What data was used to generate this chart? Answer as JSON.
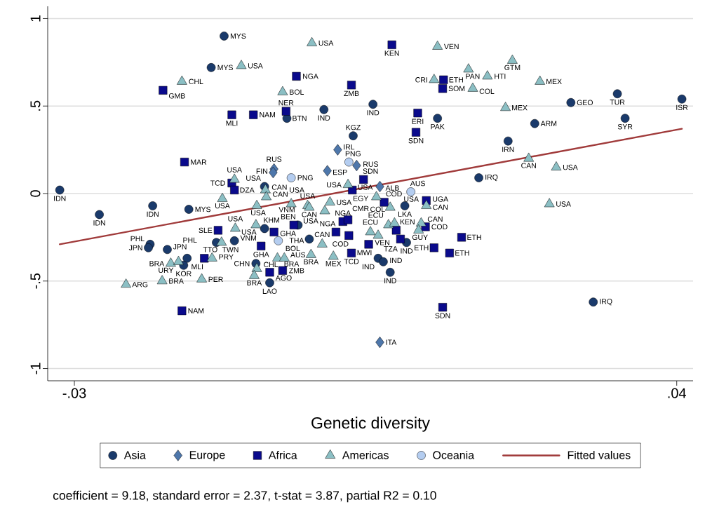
{
  "chart_data": {
    "type": "scatter",
    "xlabel": "Genetic diversity",
    "xlim": [
      -0.0331,
      0.0419
    ],
    "ylim": [
      -1.07,
      1.07
    ],
    "xticks": [
      {
        "value": -0.03,
        "label": "-.03"
      },
      {
        "value": 0.04,
        "label": ".04"
      }
    ],
    "yticks": [
      -1,
      {
        "value": -0.5,
        "label": "-.5"
      },
      0,
      {
        "value": 0.5,
        "label": ".5"
      },
      1
    ],
    "grid": "y",
    "legend": "bottom",
    "annotations": [
      "coefficient = 9.18, standard error = 2.37, t-stat = 3.87, partial R2 = 0.10"
    ],
    "series": [
      {
        "name": "Asia",
        "color": "#1a3a6b",
        "marker": "circle",
        "x": [
          -0.0126,
          -0.0141,
          0.0047,
          -0.001,
          -0.0053,
          0.0122,
          0.0024,
          0.0331,
          0.0277,
          0.0406,
          0.034,
          0.0235,
          0.0204,
          0.017,
          0.0303,
          -0.0317,
          -0.0209,
          -0.0271,
          -0.0167,
          -0.0079,
          -0.0212,
          -0.0214,
          -0.0192,
          -0.0169,
          -0.0173,
          -0.0135,
          -0.0114,
          -0.0079,
          -0.004,
          -0.0027,
          -0.0089,
          -0.0073,
          0.0084,
          0.0086,
          0.0053,
          0.0059,
          0.0067
        ],
        "values": [
          0.9,
          0.72,
          0.51,
          0.48,
          0.43,
          0.43,
          0.33,
          0.57,
          0.52,
          0.54,
          0.43,
          0.4,
          0.3,
          0.09,
          -0.62,
          0.02,
          -0.07,
          -0.12,
          -0.09,
          0.04,
          -0.29,
          -0.31,
          -0.32,
          -0.37,
          -0.41,
          -0.28,
          -0.27,
          -0.2,
          -0.18,
          -0.26,
          -0.4,
          -0.51,
          -0.07,
          -0.28,
          -0.37,
          -0.39,
          -0.45
        ],
        "value_labels": [
          "MYS",
          "MYS",
          "IND",
          "IND",
          "BTN",
          "PAK",
          "KGZ",
          "TUR",
          "GEO",
          "ISR",
          "SYR",
          "ARM",
          "IRN",
          "IRQ",
          "IRQ",
          "IDN",
          "IDN",
          "IDN",
          "MYS",
          "USA",
          "PHL",
          "JPN",
          "JPN",
          "PHL",
          "KOR",
          "TWN",
          "VNM",
          "KHM",
          "VNM",
          "THA",
          "CHN",
          "LAO",
          "LKA",
          "IND",
          "IND",
          "IND",
          "IND"
        ]
      },
      {
        "name": "Europe",
        "color": "#4e77ab",
        "marker": "diamond",
        "x": [
          -0.0068,
          -0.0069,
          0.0006,
          0.0028,
          -0.0006,
          0.0055,
          0.0055
        ],
        "values": [
          0.14,
          0.12,
          0.25,
          0.16,
          0.13,
          0.04,
          -0.85
        ],
        "value_labels": [
          "RUS",
          "FIN",
          "IRL",
          "RUS",
          "ESP",
          "ALB",
          "ITA"
        ]
      },
      {
        "name": "Africa",
        "color": "#0a0a8c",
        "marker": "square",
        "x": [
          -0.0197,
          -0.0117,
          -0.0092,
          -0.0042,
          -0.0054,
          0.0022,
          0.0069,
          0.0129,
          0.0128,
          0.0099,
          0.0097,
          -0.0172,
          -0.0117,
          -0.0114,
          0.0036,
          0.0023,
          0.006,
          0.0109,
          -0.0133,
          -0.0149,
          -0.0083,
          -0.0068,
          -0.0045,
          0.0012,
          0.0018,
          0.0004,
          0.0019,
          0.0074,
          0.0079,
          0.0042,
          0.0022,
          0.0108,
          0.015,
          0.0118,
          0.0136,
          0.0128,
          -0.0175,
          -0.0058,
          -0.0073
        ],
        "values": [
          0.59,
          0.45,
          0.45,
          0.67,
          0.47,
          0.62,
          0.85,
          0.65,
          0.6,
          0.46,
          0.35,
          0.18,
          0.06,
          0.02,
          0.08,
          0.02,
          -0.05,
          -0.04,
          -0.21,
          -0.37,
          -0.3,
          -0.22,
          -0.18,
          -0.16,
          -0.15,
          -0.22,
          -0.24,
          -0.21,
          -0.26,
          -0.29,
          -0.34,
          -0.19,
          -0.25,
          -0.31,
          -0.34,
          -0.65,
          -0.67,
          -0.44,
          -0.45
        ],
        "value_labels": [
          "GMB",
          "MLI",
          "NAM",
          "NGA",
          "NER",
          "ZMB",
          "KEN",
          "ETH",
          "SOM",
          "ERI",
          "SDN",
          "MAR",
          "TCD",
          "DZA",
          "SDN",
          "EGY",
          "COD",
          "UGA",
          "SLE",
          "MLI",
          "GHA",
          "GHA",
          "BEN",
          "NGA",
          "CMR",
          "NGA",
          "COD",
          "KEN",
          "TZA",
          "MWI",
          "TCD",
          "COD",
          "ETH",
          "ETH",
          "ETH",
          "SDN",
          "NAM",
          "ZMB",
          "AGO"
        ]
      },
      {
        "name": "Americas",
        "color": "#8bbfc4",
        "marker": "triangle",
        "x": [
          -0.0106,
          -0.0175,
          -0.0024,
          0.0122,
          0.0158,
          0.018,
          -0.0058,
          0.0118,
          0.0163,
          0.0209,
          0.0241,
          0.0201,
          0.0228,
          0.026,
          0.0252,
          -0.0114,
          -0.0128,
          -0.0078,
          -0.0077,
          0.0018,
          0.0051,
          -0.0088,
          -0.0048,
          -0.0029,
          -0.0027,
          -0.0003,
          -0.0009,
          0.0067,
          0.0109,
          -0.0113,
          -0.0089,
          -0.0129,
          -0.014,
          -0.0188,
          -0.0179,
          -0.024,
          -0.0198,
          -0.0152,
          -0.0088,
          -0.0091,
          -0.0064,
          -0.0056,
          -0.0025,
          0.0001,
          -0.0012,
          0.0044,
          0.0053,
          0.0065,
          0.0072,
          0.0103,
          0.01
        ],
        "values": [
          0.73,
          0.64,
          0.86,
          0.84,
          0.71,
          0.67,
          0.58,
          0.65,
          0.6,
          0.76,
          0.64,
          0.49,
          0.2,
          0.15,
          -0.06,
          0.08,
          -0.03,
          0.02,
          -0.02,
          0.05,
          -0.02,
          -0.07,
          -0.06,
          -0.07,
          -0.08,
          -0.05,
          -0.1,
          -0.08,
          -0.07,
          -0.2,
          -0.18,
          -0.28,
          -0.37,
          -0.4,
          -0.39,
          -0.52,
          -0.5,
          -0.49,
          -0.43,
          -0.47,
          -0.37,
          -0.37,
          -0.35,
          -0.36,
          -0.29,
          -0.22,
          -0.24,
          -0.18,
          -0.17,
          -0.17,
          -0.21
        ],
        "value_labels": [
          "USA",
          "CHL",
          "USA",
          "VEN",
          "PAN",
          "HTI",
          "BOL",
          "CRI",
          "COL",
          "GTM",
          "MEX",
          "MEX",
          "CAN",
          "USA",
          "USA",
          "USA",
          "USA",
          "CAN",
          "CAN",
          "USA",
          "USA",
          "USA",
          "USA",
          "USA",
          "CAN",
          "USA",
          "USA",
          "USA",
          "CAN",
          "USA",
          "USA",
          "TTO",
          "PRY",
          "BRA",
          "URY",
          "ARG",
          "BRA",
          "PER",
          "CHL",
          "BRA",
          "BRA",
          "BOL",
          "BRA",
          "MEX",
          "CAN",
          "ECU",
          "VEN",
          "ECU",
          "COL",
          "CAN",
          "GUY"
        ]
      },
      {
        "name": "Oceania",
        "color": "#b4cdf0",
        "marker": "circle",
        "x": [
          0.0019,
          -0.0048,
          0.0091,
          -0.0063
        ],
        "values": [
          0.18,
          0.09,
          0.01,
          -0.27
        ],
        "value_labels": [
          "PNG",
          "PNG",
          "AUS",
          "AUS"
        ]
      },
      {
        "name": "Fitted values",
        "type": "line",
        "color": "#a03a3a",
        "marker": "none",
        "line_style": "solid",
        "x": [
          -0.0317,
          0.0406
        ],
        "values": [
          -0.29,
          0.37
        ]
      }
    ]
  }
}
